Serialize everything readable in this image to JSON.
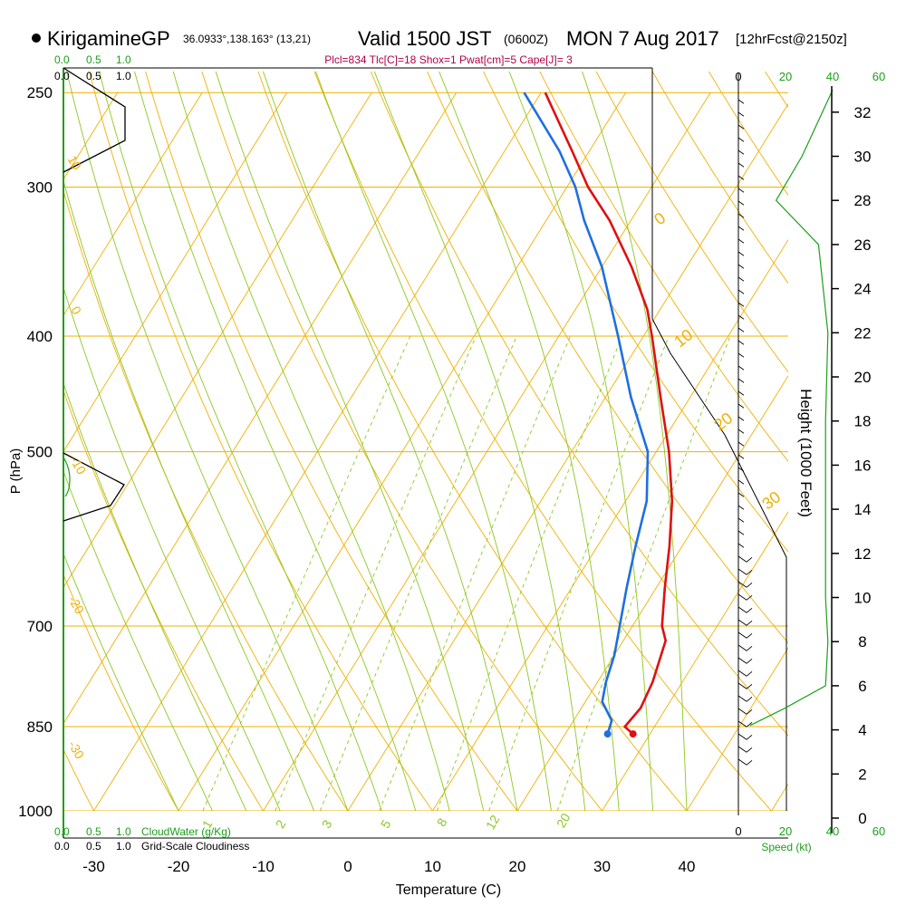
{
  "header": {
    "station": "KirigamineGP",
    "coords": "36.0933°,138.163° (13,21)",
    "valid_prefix": "Valid 1500 JST",
    "valid_z": "(0600Z)",
    "valid_date": "MON 7 Aug 2017",
    "forecast": "[12hrFcst@2150z]",
    "indices": "Plcl=834 Tlc[C]=18 Shox=1 Pwat[cm]=5 Cape[J]= 3"
  },
  "labels": {
    "xlabel": "Temperature (C)",
    "ylabel": "P (hPa)",
    "height_label": "Height (1000 Feet)",
    "speed_label": "Speed (kt)",
    "cloudwater_label": "CloudWater (g/Kg)",
    "cloudiness_label": "Grid-Scale Cloudiness",
    "scale_top_green": [
      "0.0",
      "0.5",
      "1.0"
    ],
    "scale_top_black": [
      "0.0",
      "0.5",
      "1.0"
    ],
    "scale_bottom_green": [
      "0.0",
      "0.5",
      "1.0"
    ],
    "scale_bottom_black": [
      "0.0",
      "0.5",
      "1.0"
    ]
  },
  "colors": {
    "temperature": "#dd1111",
    "dewpoint": "#1f6fe0",
    "isotherm_isobar": "#f0b000",
    "dry_adiabat": "#f0b000",
    "moist_adiabat": "#8cc820",
    "mixing_ratio": "#8cc820",
    "wind_speed": "#1aa01a",
    "cloud_water": "#1aa01a"
  },
  "chart_data": {
    "type": "skew-t",
    "x_axis": {
      "label": "Temperature (C)",
      "ticks": [
        -30,
        -20,
        -10,
        0,
        10,
        20,
        30,
        40
      ]
    },
    "y_axis": {
      "label": "P (hPa)",
      "ticks": [
        250,
        300,
        400,
        500,
        700,
        850,
        1000
      ],
      "scale": "log",
      "range": [
        1000,
        250
      ]
    },
    "height_axis": {
      "label": "Height (1000 Feet)",
      "ticks": [
        0,
        2,
        4,
        6,
        8,
        10,
        12,
        14,
        16,
        18,
        20,
        22,
        24,
        26,
        28,
        30,
        32
      ]
    },
    "speed_axis": {
      "label": "Speed (kt)",
      "ticks": [
        0,
        20,
        40,
        60
      ]
    },
    "isotherm_labels": [
      "0",
      "10",
      "20",
      "30"
    ],
    "dry_adiabat_labels": [
      "10",
      "0",
      "-10",
      "-20",
      "-30"
    ],
    "mixing_ratio_labels": [
      "1",
      "2",
      "3",
      "5",
      "8",
      "12",
      "20"
    ],
    "series": [
      {
        "name": "Temperature",
        "points": [
          {
            "p": 862,
            "t": 28.0
          },
          {
            "p": 850,
            "t": 26.5
          },
          {
            "p": 820,
            "t": 27.0
          },
          {
            "p": 780,
            "t": 26.5
          },
          {
            "p": 720,
            "t": 25.0
          },
          {
            "p": 700,
            "t": 23.5
          },
          {
            "p": 650,
            "t": 21.0
          },
          {
            "p": 600,
            "t": 18.5
          },
          {
            "p": 550,
            "t": 15.5
          },
          {
            "p": 500,
            "t": 11.5
          },
          {
            "p": 450,
            "t": 6.5
          },
          {
            "p": 400,
            "t": 1.0
          },
          {
            "p": 380,
            "t": -1.5
          },
          {
            "p": 350,
            "t": -6.5
          },
          {
            "p": 320,
            "t": -12.5
          },
          {
            "p": 300,
            "t": -17.5
          },
          {
            "p": 280,
            "t": -22.0
          },
          {
            "p": 250,
            "t": -29.5
          }
        ]
      },
      {
        "name": "Dewpoint",
        "points": [
          {
            "p": 862,
            "t": 25.0
          },
          {
            "p": 840,
            "t": 24.5
          },
          {
            "p": 810,
            "t": 22.0
          },
          {
            "p": 780,
            "t": 21.0
          },
          {
            "p": 740,
            "t": 20.0
          },
          {
            "p": 700,
            "t": 18.5
          },
          {
            "p": 650,
            "t": 16.5
          },
          {
            "p": 600,
            "t": 14.5
          },
          {
            "p": 550,
            "t": 12.5
          },
          {
            "p": 500,
            "t": 9.0
          },
          {
            "p": 450,
            "t": 3.0
          },
          {
            "p": 400,
            "t": -3.0
          },
          {
            "p": 350,
            "t": -10.0
          },
          {
            "p": 320,
            "t": -15.5
          },
          {
            "p": 300,
            "t": -19.0
          },
          {
            "p": 280,
            "t": -23.5
          },
          {
            "p": 250,
            "t": -32.0
          }
        ]
      }
    ],
    "wind_speed_profile": [
      {
        "height_kft": 4.2,
        "speed_kt": 5
      },
      {
        "height_kft": 5.0,
        "speed_kt": 20
      },
      {
        "height_kft": 6.0,
        "speed_kt": 37
      },
      {
        "height_kft": 8.0,
        "speed_kt": 38
      },
      {
        "height_kft": 10.0,
        "speed_kt": 37
      },
      {
        "height_kft": 14.0,
        "speed_kt": 37
      },
      {
        "height_kft": 18.0,
        "speed_kt": 37
      },
      {
        "height_kft": 22.0,
        "speed_kt": 38
      },
      {
        "height_kft": 26.0,
        "speed_kt": 34
      },
      {
        "height_kft": 28.0,
        "speed_kt": 16
      },
      {
        "height_kft": 30.0,
        "speed_kt": 27
      },
      {
        "height_kft": 33.0,
        "speed_kt": 40
      }
    ]
  }
}
